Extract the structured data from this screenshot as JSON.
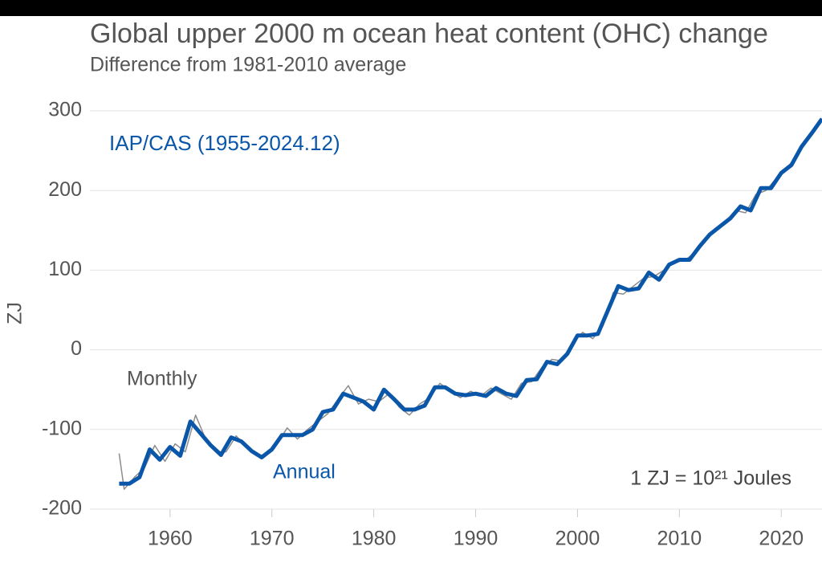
{
  "chart_data": {
    "type": "line",
    "title": "Global upper 2000 m ocean heat content (OHC) change",
    "subtitle": "Difference from 1981-2010 average",
    "ylabel": "ZJ",
    "annotations": [
      "IAP/CAS (1955-2024.12)",
      "Monthly",
      "Annual",
      "1 ZJ = 10²¹ Joules"
    ],
    "xlim": [
      1953,
      2024
    ],
    "xticks": [
      1960,
      1970,
      1980,
      1990,
      2000,
      2010,
      2020
    ],
    "ylim": [
      -200,
      300
    ],
    "yticks": [
      -200,
      -100,
      0,
      100,
      200,
      300
    ],
    "grid": true,
    "series": [
      {
        "name": "Monthly",
        "color": "#8c8c8c",
        "x": [
          1955,
          1955.5,
          1956.5,
          1957.5,
          1958.5,
          1959.5,
          1960.5,
          1961.5,
          1962.5,
          1963.5,
          1964.5,
          1965.5,
          1966.5,
          1967.5,
          1968.5,
          1969.5,
          1970.5,
          1971.5,
          1972.5,
          1973.5,
          1974.5,
          1975.5,
          1976.5,
          1977.5,
          1978.5,
          1979.5,
          1980.5,
          1981.5,
          1982.5,
          1983.5,
          1984.5,
          1985.5,
          1986.5,
          1987.5,
          1988.5,
          1989.5,
          1990.5,
          1991.5,
          1992.5,
          1993.5,
          1994.5,
          1995.5,
          1996.5,
          1997.5,
          1998.5,
          1999.5,
          2000.5,
          2001.5,
          2002.5,
          2003.5,
          2004.5,
          2005.5,
          2006.5,
          2007.5,
          2008.5,
          2009.5,
          2010.5,
          2011.5,
          2012.5,
          2013.5,
          2014.5,
          2015.5,
          2016.5,
          2017.5,
          2018.5,
          2019.5,
          2020.5,
          2021.5,
          2022.5,
          2023.5
        ],
        "values": [
          -130,
          -175,
          -160,
          -148,
          -120,
          -140,
          -118,
          -128,
          -82,
          -112,
          -128,
          -128,
          -108,
          -122,
          -133,
          -132,
          -118,
          -98,
          -112,
          -100,
          -90,
          -80,
          -62,
          -45,
          -68,
          -62,
          -65,
          -55,
          -72,
          -82,
          -68,
          -60,
          -42,
          -52,
          -60,
          -52,
          -58,
          -48,
          -55,
          -62,
          -42,
          -40,
          -22,
          -12,
          -14,
          8,
          22,
          14,
          30,
          72,
          70,
          80,
          90,
          92,
          100,
          110,
          112,
          122,
          140,
          148,
          160,
          175,
          172,
          195,
          200,
          215,
          228,
          242,
          262,
          282
        ]
      },
      {
        "name": "Annual",
        "color": "#0a56a8",
        "x": [
          1955,
          1956,
          1957,
          1958,
          1959,
          1960,
          1961,
          1962,
          1963,
          1964,
          1965,
          1966,
          1967,
          1968,
          1969,
          1970,
          1971,
          1972,
          1973,
          1974,
          1975,
          1976,
          1977,
          1978,
          1979,
          1980,
          1981,
          1982,
          1983,
          1984,
          1985,
          1986,
          1987,
          1988,
          1989,
          1990,
          1991,
          1992,
          1993,
          1994,
          1995,
          1996,
          1997,
          1998,
          1999,
          2000,
          2001,
          2002,
          2003,
          2004,
          2005,
          2006,
          2007,
          2008,
          2009,
          2010,
          2011,
          2012,
          2013,
          2014,
          2015,
          2016,
          2017,
          2018,
          2019,
          2020,
          2021,
          2022,
          2023,
          2024
        ],
        "values": [
          -168,
          -168,
          -160,
          -125,
          -138,
          -122,
          -133,
          -90,
          -105,
          -120,
          -132,
          -110,
          -115,
          -127,
          -135,
          -125,
          -107,
          -107,
          -107,
          -100,
          -78,
          -75,
          -55,
          -60,
          -65,
          -75,
          -50,
          -62,
          -75,
          -75,
          -70,
          -47,
          -47,
          -55,
          -57,
          -55,
          -58,
          -48,
          -55,
          -58,
          -38,
          -37,
          -15,
          -18,
          -5,
          18,
          18,
          20,
          50,
          80,
          75,
          77,
          97,
          88,
          107,
          113,
          113,
          130,
          145,
          155,
          165,
          180,
          175,
          203,
          203,
          222,
          232,
          255,
          272,
          290
        ]
      }
    ]
  }
}
